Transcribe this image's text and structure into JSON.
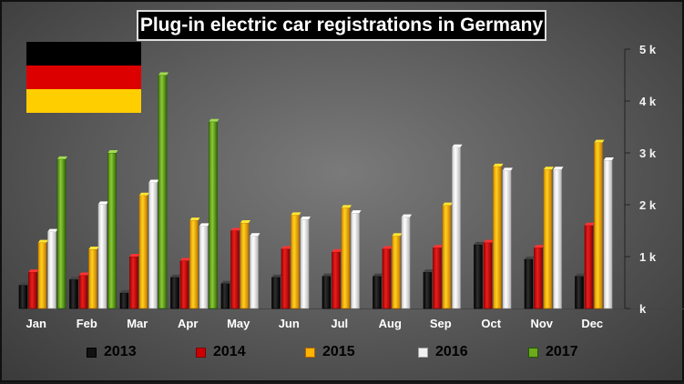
{
  "chart_data": {
    "type": "bar",
    "title": "Plug-in electric car registrations in Germany",
    "categories": [
      "Jan",
      "Feb",
      "Mar",
      "Apr",
      "May",
      "Jun",
      "Jul",
      "Aug",
      "Sep",
      "Oct",
      "Nov",
      "Dec"
    ],
    "ylim": [
      0,
      5000
    ],
    "y_ticks": [
      0,
      1000,
      2000,
      3000,
      4000,
      5000
    ],
    "y_tick_labels": [
      "k",
      "1 k",
      "2 k",
      "3 k",
      "4 k",
      "5 k"
    ],
    "y_axis_side": "right",
    "grid": false,
    "legend_placement": "bottom",
    "series": [
      {
        "name": "2013",
        "color": "#111111",
        "values": [
          450,
          560,
          300,
          600,
          480,
          600,
          620,
          620,
          700,
          1230,
          950,
          620
        ]
      },
      {
        "name": "2014",
        "color": "#cc0000",
        "values": [
          700,
          640,
          1000,
          920,
          1500,
          1150,
          1090,
          1150,
          1170,
          1270,
          1170,
          1600
        ]
      },
      {
        "name": "2015",
        "color": "#ffb400",
        "values": [
          1270,
          1140,
          2180,
          1700,
          1650,
          1800,
          1940,
          1400,
          1990,
          2740,
          2680,
          3200
        ]
      },
      {
        "name": "2016",
        "color": "#f2f2f2",
        "values": [
          1480,
          2010,
          2430,
          1590,
          1400,
          1720,
          1840,
          1760,
          3110,
          2660,
          2680,
          2860
        ]
      },
      {
        "name": "2017",
        "color": "#6faa1e",
        "values": [
          2880,
          3000,
          4500,
          3600,
          null,
          null,
          null,
          null,
          null,
          null,
          null,
          null
        ]
      }
    ]
  },
  "flag": {
    "colors": [
      "#000000",
      "#dd0000",
      "#ffce00"
    ]
  }
}
